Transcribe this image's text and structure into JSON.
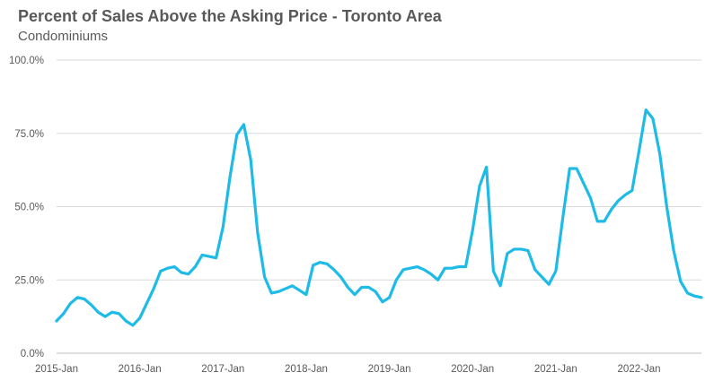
{
  "chart_data": {
    "type": "line",
    "title": "Percent of Sales Above the Asking Price - Toronto Area",
    "subtitle": "Condominiums",
    "xlabel": "",
    "ylabel": "",
    "ylim": [
      0,
      100
    ],
    "y_ticks": [
      "0.0%",
      "25.0%",
      "50.0%",
      "75.0%",
      "100.0%"
    ],
    "x_ticks": [
      "2015-Jan",
      "2016-Jan",
      "2017-Jan",
      "2018-Jan",
      "2019-Jan",
      "2020-Jan",
      "2021-Jan",
      "2022-Jan"
    ],
    "x_start": "2015-01",
    "x_end": "2022-10",
    "grid": "horizontal",
    "legend": "none",
    "series_color": "#1ebbe8",
    "series": [
      {
        "values": [
          11,
          13.5,
          17,
          19,
          18.5,
          16.5,
          14,
          12.5,
          14,
          13.5,
          11,
          9.5,
          12,
          17,
          22,
          28,
          29,
          29.5,
          27.5,
          27,
          29.5,
          33.5,
          33,
          32.5,
          43,
          60,
          74.5,
          78,
          66,
          41,
          26,
          20.5,
          21,
          22,
          23,
          21.5,
          20,
          30,
          31,
          30.5,
          28.5,
          26,
          22.5,
          20,
          22.5,
          22.5,
          21,
          17.5,
          19,
          25,
          28.5,
          29,
          29.5,
          28.5,
          27,
          25,
          29,
          29,
          29.5,
          29.5,
          42,
          57,
          63.5,
          28,
          23,
          34,
          35.5,
          35.5,
          35,
          28.5,
          26,
          23.5,
          28,
          46,
          63,
          63,
          58,
          53,
          45,
          45,
          49,
          52,
          54,
          55.5,
          69,
          83,
          80,
          68,
          50,
          35,
          24.5,
          20.5,
          19.5,
          19
        ]
      }
    ]
  }
}
